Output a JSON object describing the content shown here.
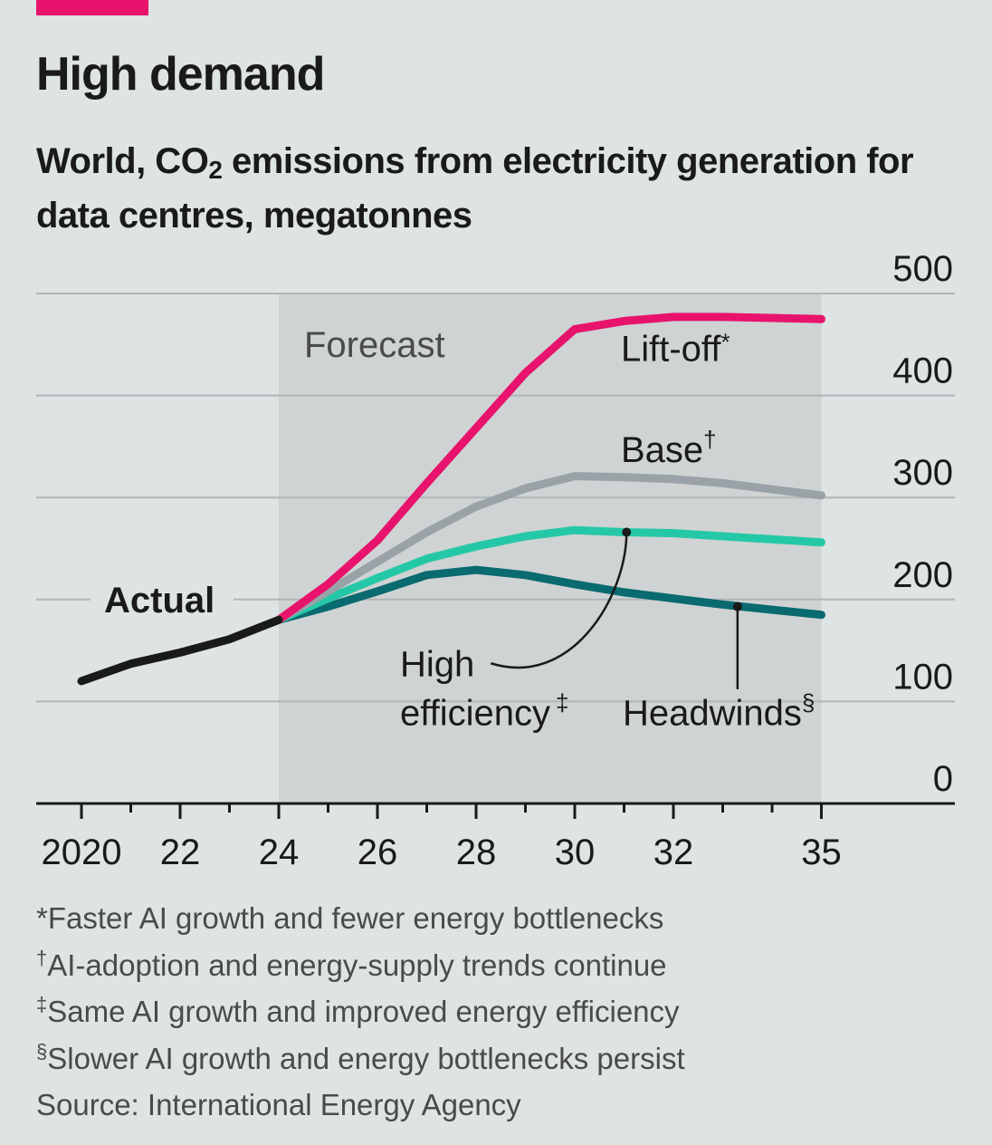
{
  "header": {
    "tag_color": "#e8136d",
    "title": "High demand",
    "subtitle_pre": "World, CO",
    "subtitle_sub": "2",
    "subtitle_post": " emissions from electricity generation for data centres, megatonnes"
  },
  "chart_data": {
    "type": "line",
    "ylim": [
      0,
      500
    ],
    "yticks": [
      0,
      100,
      200,
      300,
      400,
      500
    ],
    "yticklabels": [
      "0",
      "100",
      "200",
      "300",
      "400",
      "500"
    ],
    "xlim": [
      2019.5,
      2035
    ],
    "xticks_major": [
      2020,
      2022,
      2024,
      2026,
      2028,
      2030,
      2032,
      2035
    ],
    "xticklabels": [
      "2020",
      "22",
      "24",
      "26",
      "28",
      "30",
      "32",
      "35"
    ],
    "xticks_minor": [
      2021,
      2023,
      2025,
      2027,
      2029,
      2031,
      2033,
      2034
    ],
    "forecast_region": {
      "label": "Forecast",
      "from": 2024,
      "to": 2035,
      "color": "#cfd3d3"
    },
    "series": [
      {
        "name": "Actual",
        "color": "#1a1a1a",
        "x": [
          2020,
          2021,
          2022,
          2023,
          2024
        ],
        "y": [
          120,
          137,
          148,
          161,
          180
        ]
      },
      {
        "name": "Lift-off",
        "mark": "*",
        "color": "#e8136d",
        "x": [
          2024,
          2025,
          2026,
          2027,
          2028,
          2029,
          2030,
          2031,
          2032,
          2033,
          2034,
          2035
        ],
        "y": [
          180,
          215,
          258,
          314,
          368,
          422,
          465,
          473,
          477,
          477,
          476,
          475
        ]
      },
      {
        "name": "Base",
        "mark": "†",
        "color": "#99a2a7",
        "x": [
          2024,
          2025,
          2026,
          2027,
          2028,
          2029,
          2030,
          2031,
          2032,
          2033,
          2034,
          2035
        ],
        "y": [
          180,
          208,
          237,
          266,
          291,
          309,
          321,
          320,
          318,
          314,
          308,
          302
        ]
      },
      {
        "name": "High efficiency",
        "mark": "‡",
        "color": "#25c8a6",
        "x": [
          2024,
          2025,
          2026,
          2027,
          2028,
          2029,
          2030,
          2031,
          2032,
          2033,
          2034,
          2035
        ],
        "y": [
          180,
          201,
          221,
          240,
          252,
          262,
          268,
          266,
          265,
          262,
          259,
          256
        ]
      },
      {
        "name": "Headwinds",
        "mark": "§",
        "color": "#096a70",
        "x": [
          2024,
          2025,
          2026,
          2027,
          2028,
          2029,
          2030,
          2031,
          2032,
          2033,
          2034,
          2035
        ],
        "y": [
          180,
          193,
          208,
          224,
          229,
          224,
          215,
          207,
          201,
          195,
          190,
          185
        ]
      }
    ]
  },
  "labels": {
    "forecast": "Forecast",
    "actual": "Actual",
    "liftoff": "Lift-off",
    "liftoff_mark": "*",
    "base": "Base",
    "base_mark": "†",
    "high_efficiency_line1": "High",
    "high_efficiency_line2": "efficiency",
    "high_efficiency_mark": "‡",
    "headwinds": "Headwinds",
    "headwinds_mark": "§"
  },
  "footnotes": [
    {
      "mark": "*",
      "text": "Faster AI growth and fewer energy bottlenecks"
    },
    {
      "mark": "†",
      "text": "AI-adoption and energy-supply trends continue"
    },
    {
      "mark": "‡",
      "text": "Same AI growth and improved energy efficiency"
    },
    {
      "mark": "§",
      "text": "Slower AI growth and energy bottlenecks persist"
    }
  ],
  "source": "Source: International Energy Agency"
}
